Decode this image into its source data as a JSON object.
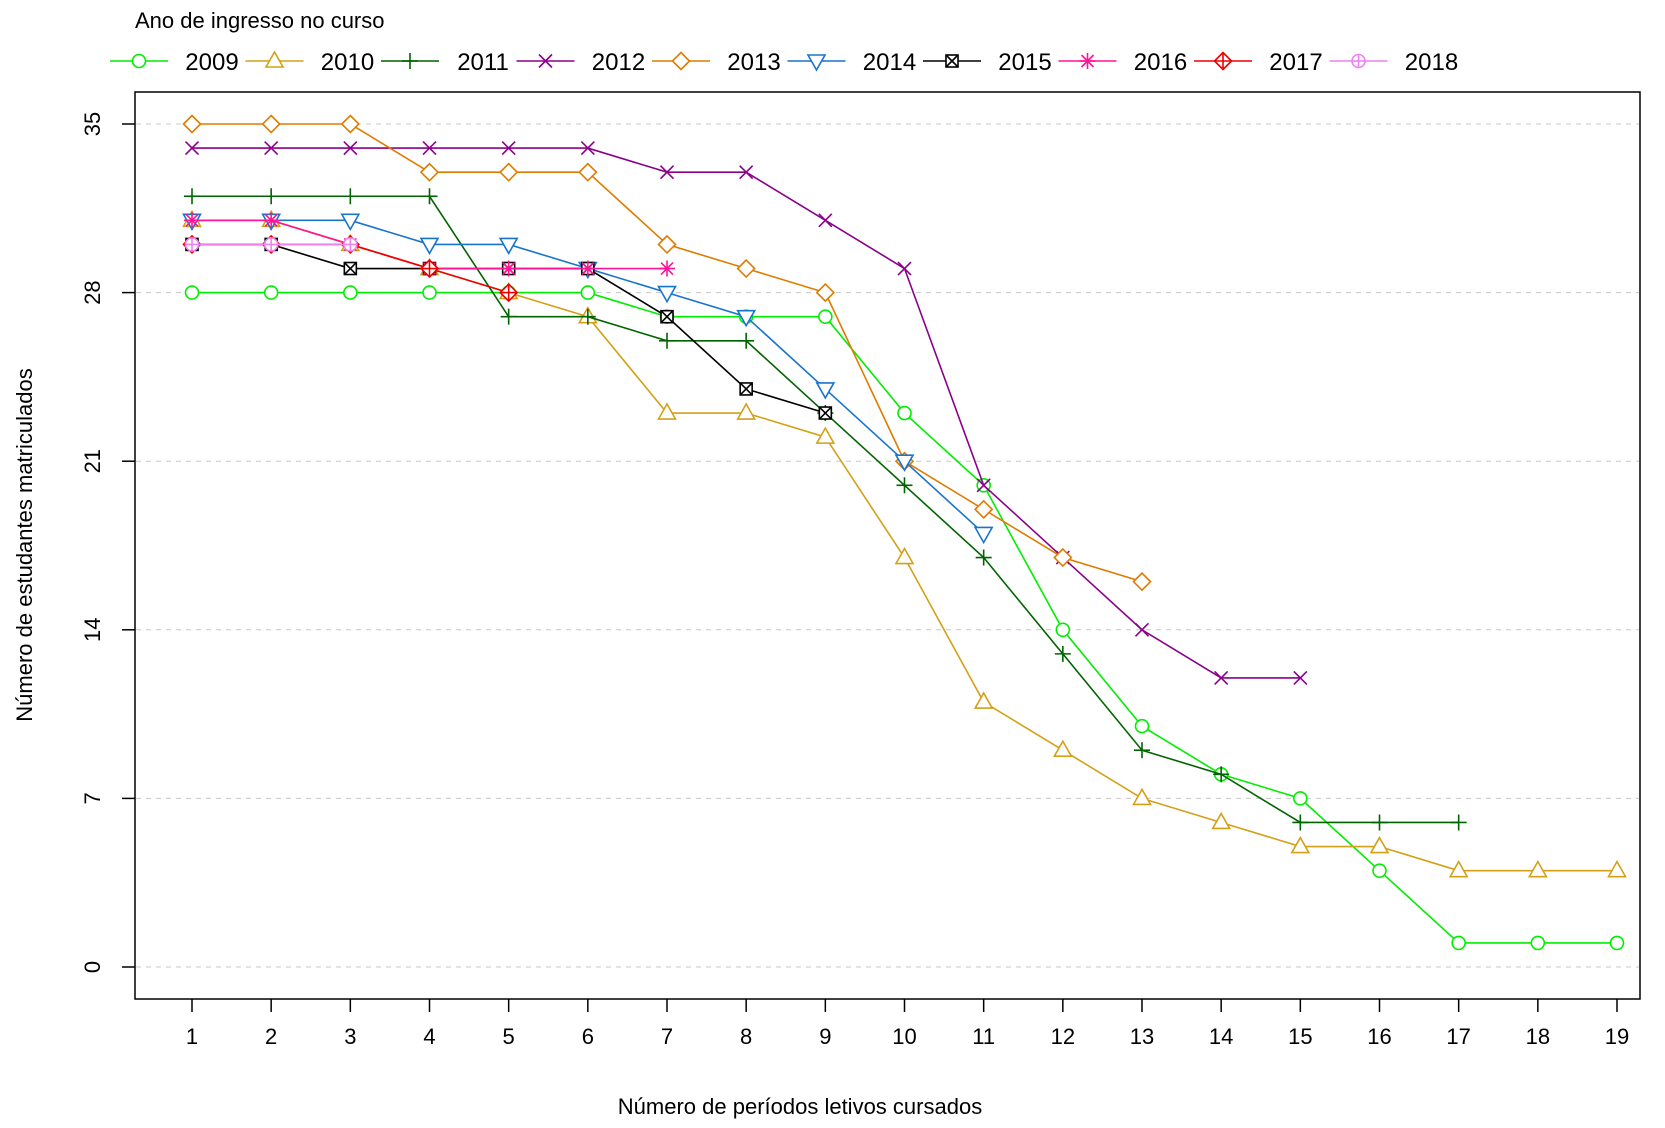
{
  "chart_data": {
    "type": "line",
    "xlabel": "Número de períodos letivos cursados",
    "ylabel": "Número de estudantes matriculados",
    "xlim": [
      1,
      19
    ],
    "ylim": [
      0,
      35
    ],
    "xticks": [
      "1",
      "2",
      "3",
      "4",
      "5",
      "6",
      "7",
      "8",
      "9",
      "10",
      "11",
      "12",
      "13",
      "14",
      "15",
      "16",
      "17",
      "18",
      "19"
    ],
    "yticks": [
      "0",
      "7",
      "14",
      "21",
      "28",
      "35"
    ],
    "grid": "horizontal dashed",
    "legend": {
      "title": "Ano de ingresso no curso",
      "placement": "top"
    },
    "series": [
      {
        "name": "2009",
        "color": "#00ee00",
        "marker": "circle",
        "x": [
          1,
          2,
          3,
          4,
          5,
          6,
          7,
          8,
          9,
          10,
          11,
          12,
          13,
          14,
          15,
          16,
          17,
          18,
          19
        ],
        "y": [
          28,
          28,
          28,
          28,
          28,
          28,
          27,
          27,
          27,
          23,
          20,
          14,
          10,
          8,
          7,
          4,
          1,
          1,
          1
        ]
      },
      {
        "name": "2010",
        "color": "#d4a017",
        "marker": "triangle-up",
        "x": [
          1,
          2,
          3,
          4,
          5,
          6,
          7,
          8,
          9,
          10,
          11,
          12,
          13,
          14,
          15,
          16,
          17,
          18,
          19
        ],
        "y": [
          31,
          31,
          30,
          29,
          28,
          27,
          23,
          23,
          22,
          17,
          11,
          9,
          7,
          6,
          5,
          5,
          4,
          4,
          4
        ]
      },
      {
        "name": "2011",
        "color": "#006400",
        "marker": "plus",
        "x": [
          1,
          2,
          3,
          4,
          5,
          6,
          7,
          8,
          9,
          10,
          11,
          12,
          13,
          14,
          15,
          16,
          17
        ],
        "y": [
          32,
          32,
          32,
          32,
          27,
          27,
          26,
          26,
          23,
          20,
          17,
          13,
          9,
          8,
          6,
          6,
          6
        ]
      },
      {
        "name": "2012",
        "color": "#8b008b",
        "marker": "cross",
        "x": [
          1,
          2,
          3,
          4,
          5,
          6,
          7,
          8,
          9,
          10,
          11,
          12,
          13,
          14,
          15
        ],
        "y": [
          34,
          34,
          34,
          34,
          34,
          34,
          33,
          33,
          31,
          29,
          20,
          17,
          14,
          12,
          12
        ]
      },
      {
        "name": "2013",
        "color": "#e07b00",
        "marker": "diamond",
        "x": [
          1,
          2,
          3,
          4,
          5,
          6,
          7,
          8,
          9,
          10,
          11,
          12,
          13
        ],
        "y": [
          35,
          35,
          35,
          33,
          33,
          33,
          30,
          29,
          28,
          21,
          19,
          17,
          16
        ]
      },
      {
        "name": "2014",
        "color": "#1874cd",
        "marker": "triangle-down",
        "x": [
          1,
          2,
          3,
          4,
          5,
          6,
          7,
          8,
          9,
          10,
          11
        ],
        "y": [
          31,
          31,
          31,
          30,
          30,
          29,
          28,
          27,
          24,
          21,
          18
        ]
      },
      {
        "name": "2015",
        "color": "#000000",
        "marker": "square-x",
        "x": [
          1,
          2,
          3,
          4,
          5,
          6,
          7,
          8,
          9
        ],
        "y": [
          30,
          30,
          29,
          29,
          29,
          29,
          27,
          24,
          23
        ]
      },
      {
        "name": "2016",
        "color": "#ff1493",
        "marker": "asterisk",
        "x": [
          1,
          2,
          3,
          4,
          5,
          6,
          7
        ],
        "y": [
          31,
          31,
          30,
          29,
          29,
          29,
          29
        ]
      },
      {
        "name": "2017",
        "color": "#ee0000",
        "marker": "diamond-plus",
        "x": [
          1,
          2,
          3,
          4,
          5
        ],
        "y": [
          30,
          30,
          30,
          29,
          28
        ]
      },
      {
        "name": "2018",
        "color": "#ee82ee",
        "marker": "circle-plus",
        "x": [
          1,
          2,
          3
        ],
        "y": [
          30,
          30,
          30
        ]
      }
    ]
  }
}
